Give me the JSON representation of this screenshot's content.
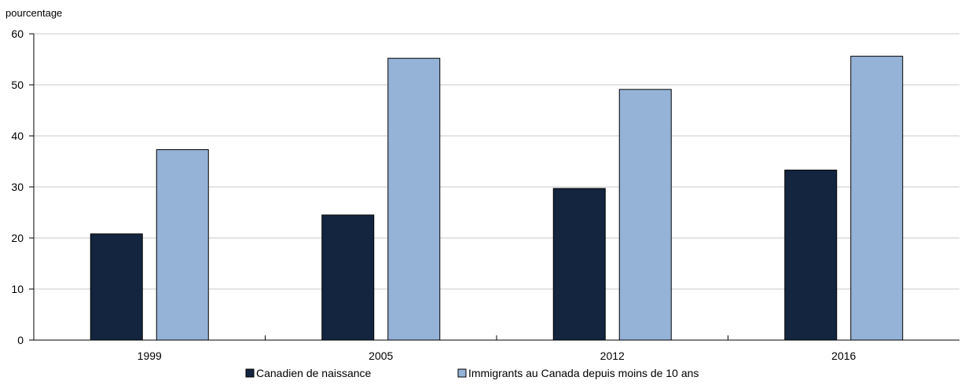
{
  "chart_data": {
    "type": "bar",
    "ylabel": "pourcentage",
    "ylim": [
      0,
      60
    ],
    "yticks": [
      0,
      10,
      20,
      30,
      40,
      50,
      60
    ],
    "categories": [
      "1999",
      "2005",
      "2012",
      "2016"
    ],
    "series": [
      {
        "name": "Canadien de naissance",
        "color": "#13253f",
        "values": [
          20.8,
          24.5,
          29.7,
          33.3
        ]
      },
      {
        "name": "Immigrants au Canada depuis moins de 10 ans",
        "color": "#95b3d7",
        "values": [
          37.3,
          55.2,
          49.1,
          55.6
        ]
      }
    ],
    "grid": true,
    "legend_position": "bottom"
  }
}
